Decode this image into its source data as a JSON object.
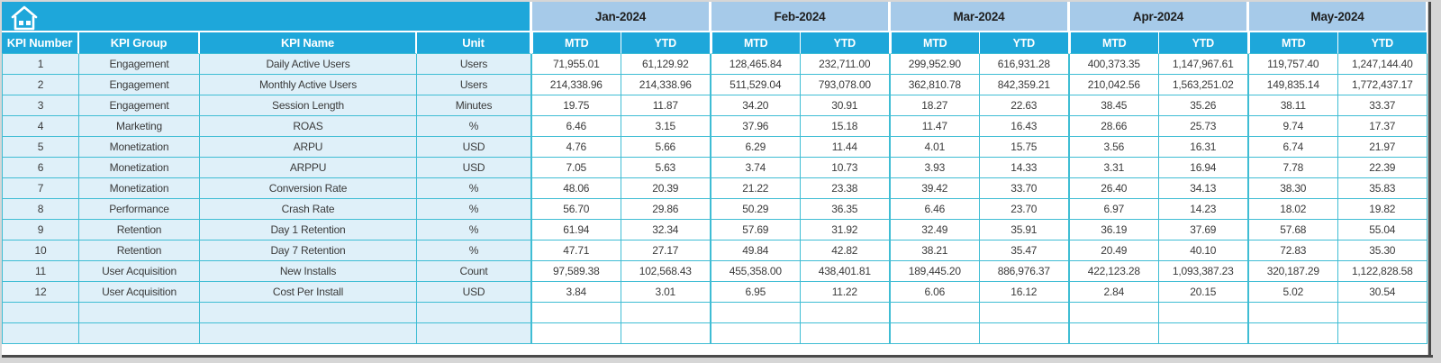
{
  "table": {
    "home_icon": "home-icon",
    "left_headers": [
      "KPI Number",
      "KPI Group",
      "KPI Name",
      "Unit"
    ],
    "months": [
      "Jan-2024",
      "Feb-2024",
      "Mar-2024",
      "Apr-2024",
      "May-2024"
    ],
    "sub_headers": [
      "MTD",
      "YTD"
    ],
    "rows": [
      {
        "number": "1",
        "group": "Engagement",
        "name": "Daily Active Users",
        "unit": "Users",
        "values": [
          "71,955.01",
          "61,129.92",
          "128,465.84",
          "232,711.00",
          "299,952.90",
          "616,931.28",
          "400,373.35",
          "1,147,967.61",
          "119,757.40",
          "1,247,144.40"
        ]
      },
      {
        "number": "2",
        "group": "Engagement",
        "name": "Monthly Active Users",
        "unit": "Users",
        "values": [
          "214,338.96",
          "214,338.96",
          "511,529.04",
          "793,078.00",
          "362,810.78",
          "842,359.21",
          "210,042.56",
          "1,563,251.02",
          "149,835.14",
          "1,772,437.17"
        ]
      },
      {
        "number": "3",
        "group": "Engagement",
        "name": "Session Length",
        "unit": "Minutes",
        "values": [
          "19.75",
          "11.87",
          "34.20",
          "30.91",
          "18.27",
          "22.63",
          "38.45",
          "35.26",
          "38.11",
          "33.37"
        ]
      },
      {
        "number": "4",
        "group": "Marketing",
        "name": "ROAS",
        "unit": "%",
        "values": [
          "6.46",
          "3.15",
          "37.96",
          "15.18",
          "11.47",
          "16.43",
          "28.66",
          "25.73",
          "9.74",
          "17.37"
        ]
      },
      {
        "number": "5",
        "group": "Monetization",
        "name": "ARPU",
        "unit": "USD",
        "values": [
          "4.76",
          "5.66",
          "6.29",
          "11.44",
          "4.01",
          "15.75",
          "3.56",
          "16.31",
          "6.74",
          "21.97"
        ]
      },
      {
        "number": "6",
        "group": "Monetization",
        "name": "ARPPU",
        "unit": "USD",
        "values": [
          "7.05",
          "5.63",
          "3.74",
          "10.73",
          "3.93",
          "14.33",
          "3.31",
          "16.94",
          "7.78",
          "22.39"
        ]
      },
      {
        "number": "7",
        "group": "Monetization",
        "name": "Conversion Rate",
        "unit": "%",
        "values": [
          "48.06",
          "20.39",
          "21.22",
          "23.38",
          "39.42",
          "33.70",
          "26.40",
          "34.13",
          "38.30",
          "35.83"
        ]
      },
      {
        "number": "8",
        "group": "Performance",
        "name": "Crash Rate",
        "unit": "%",
        "values": [
          "56.70",
          "29.86",
          "50.29",
          "36.35",
          "6.46",
          "23.70",
          "6.97",
          "14.23",
          "18.02",
          "19.82"
        ]
      },
      {
        "number": "9",
        "group": "Retention",
        "name": "Day 1 Retention",
        "unit": "%",
        "values": [
          "61.94",
          "32.34",
          "57.69",
          "31.92",
          "32.49",
          "35.91",
          "36.19",
          "37.69",
          "57.68",
          "55.04"
        ]
      },
      {
        "number": "10",
        "group": "Retention",
        "name": "Day 7 Retention",
        "unit": "%",
        "values": [
          "47.71",
          "27.17",
          "49.84",
          "42.82",
          "38.21",
          "35.47",
          "20.49",
          "40.10",
          "72.83",
          "35.30"
        ]
      },
      {
        "number": "11",
        "group": "User Acquisition",
        "name": "New Installs",
        "unit": "Count",
        "values": [
          "97,589.38",
          "102,568.43",
          "455,358.00",
          "438,401.81",
          "189,445.20",
          "886,976.37",
          "422,123.28",
          "1,093,387.23",
          "320,187.29",
          "1,122,828.58"
        ]
      },
      {
        "number": "12",
        "group": "User Acquisition",
        "name": "Cost Per Install",
        "unit": "USD",
        "values": [
          "3.84",
          "3.01",
          "6.95",
          "11.22",
          "6.06",
          "16.12",
          "2.84",
          "20.15",
          "5.02",
          "30.54"
        ]
      }
    ],
    "empty_rows": 2
  },
  "colors": {
    "accent": "#1EA7DA",
    "month_header": "#A6CAE9",
    "grid": "#3FBDD4",
    "row_label_bg": "#DFF0F9",
    "frame": "#4A4A4A",
    "canvas": "#D6D6D6"
  }
}
